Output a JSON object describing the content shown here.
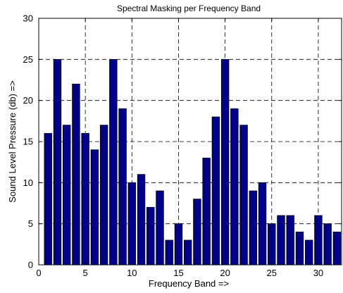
{
  "chart_data": {
    "type": "bar",
    "title": "Spectral Masking per Frequency Band",
    "xlabel": "Frequency Band =>",
    "ylabel": "Sound Level Pressure (db) =>",
    "x": [
      1,
      2,
      3,
      4,
      5,
      6,
      7,
      8,
      9,
      10,
      11,
      12,
      13,
      14,
      15,
      16,
      17,
      18,
      19,
      20,
      21,
      22,
      23,
      24,
      25,
      26,
      27,
      28,
      29,
      30,
      31,
      32
    ],
    "values": [
      16,
      25,
      17,
      22,
      16,
      14,
      17,
      25,
      19,
      10,
      11,
      7,
      9,
      3,
      5,
      3,
      8,
      13,
      18,
      25,
      19,
      17,
      9,
      10,
      5,
      6,
      6,
      4,
      3,
      6,
      5,
      4
    ],
    "xlim": [
      0,
      32.5
    ],
    "ylim": [
      0,
      30
    ],
    "xticks": [
      0,
      5,
      10,
      15,
      20,
      25,
      30
    ],
    "yticks": [
      0,
      5,
      10,
      15,
      20,
      25,
      30
    ],
    "grid": true,
    "bar_color": "#00008b"
  }
}
